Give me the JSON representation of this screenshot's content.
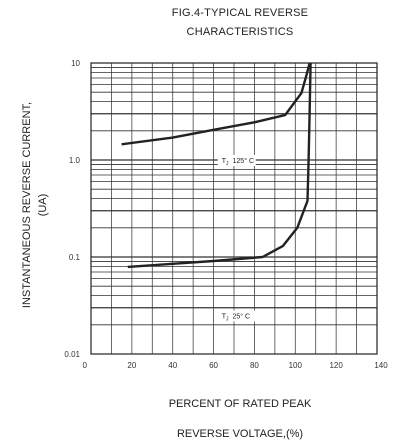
{
  "chart_data": {
    "type": "line",
    "title": [
      "FIG.4-TYPICAL REVERSE",
      "CHARACTERISTICS"
    ],
    "xlabel": [
      "PERCENT OF RATED PEAK",
      "REVERSE VOLTAGE,(%)"
    ],
    "ylabel": [
      "INSTANTANEOUS REVERSE CURRENT,",
      "(UA)"
    ],
    "y_scale": "log",
    "xlim": [
      0,
      140
    ],
    "ylim": [
      0.01,
      10
    ],
    "x_ticks": [
      "0",
      "20",
      "40",
      "60",
      "80",
      "100",
      "120",
      "140"
    ],
    "y_ticks": [
      "0.01",
      "0.1",
      "1.0",
      "10"
    ],
    "grid": true,
    "series": [
      {
        "name": "TJ 125° C",
        "label_main": "T",
        "label_sub": "J",
        "label_rest": "125° C",
        "points": [
          [
            15,
            1.45
          ],
          [
            40,
            1.7
          ],
          [
            60,
            2.05
          ],
          [
            80,
            2.45
          ],
          [
            95,
            2.9
          ],
          [
            103,
            4.9
          ],
          [
            105.5,
            7.5
          ],
          [
            107,
            10
          ]
        ]
      },
      {
        "name": "TJ 25° C",
        "label_main": "T",
        "label_sub": "J",
        "label_rest": "25° C",
        "points": [
          [
            18,
            0.079
          ],
          [
            40,
            0.085
          ],
          [
            60,
            0.091
          ],
          [
            84,
            0.1
          ],
          [
            94,
            0.13
          ],
          [
            101,
            0.2
          ],
          [
            106,
            0.38
          ],
          [
            106.5,
            1.0
          ],
          [
            107,
            3.0
          ],
          [
            107.5,
            10
          ]
        ]
      }
    ]
  }
}
